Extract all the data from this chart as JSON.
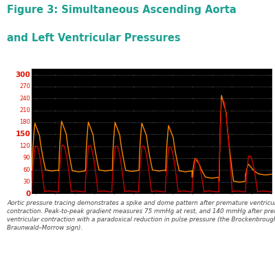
{
  "title_line1": "Figure 3: Simultaneous Ascending Aorta",
  "title_line2": "and Left Ventricular Pressures",
  "title_color": "#1aA090",
  "bg_color": "#000000",
  "outer_bg": "#ffffff",
  "aorta_color": "#ff8800",
  "lv_color": "#cc0000",
  "grid_color": "#333333",
  "dot_color": "#777777",
  "yticks": [
    0,
    30,
    60,
    90,
    120,
    150,
    180,
    210,
    240,
    270,
    300
  ],
  "yticklabels_highlight": [
    "0",
    "150",
    "300"
  ],
  "ylim": [
    0,
    315
  ],
  "caption_color": "#444444",
  "divider_color": "#e05010",
  "label_color": "#dd1100"
}
